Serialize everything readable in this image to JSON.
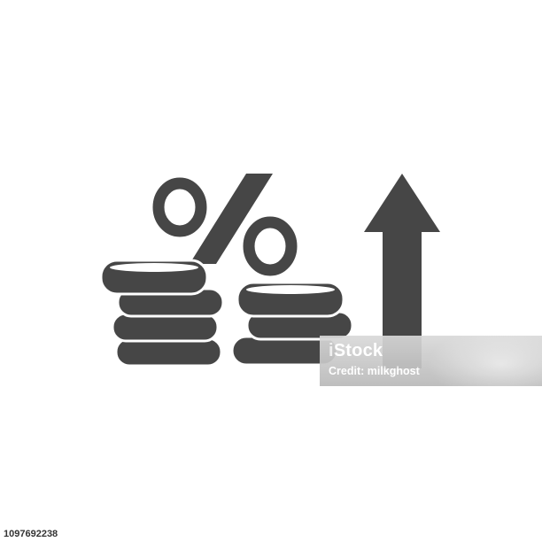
{
  "colors": {
    "icon": "#464646",
    "coin_gap": "#ffffff",
    "background": "#ffffff"
  },
  "icon": {
    "symbol": "%",
    "elements": [
      "percent-sign-icon",
      "coin-stack-icon",
      "coin-stack-icon",
      "up-arrow-icon"
    ]
  },
  "watermark": {
    "logo": "iStock",
    "credit": "Credit: milkghost"
  },
  "stock_id": "1097692238"
}
